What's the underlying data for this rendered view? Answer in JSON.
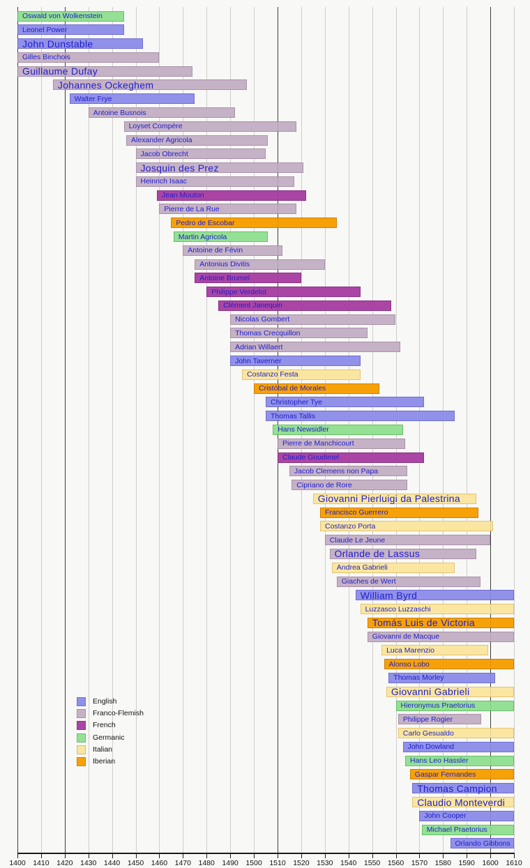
{
  "colors": {
    "background": "#f8f8f6",
    "grid_light": "#cdcdcd",
    "grid_dark": "#3c3c3c",
    "axis": "#1a1a1a",
    "bar_label_text": "#1e1ecc",
    "axis_text": "#111111",
    "legend_text": "#111111"
  },
  "chart_data": {
    "type": "bar",
    "subtype": "timeline-gantt",
    "title": "",
    "xlabel": "",
    "ylabel": "",
    "x_axis": {
      "min": 1400,
      "max": 1610,
      "tick_interval": 10,
      "ticks": [
        1400,
        1410,
        1420,
        1430,
        1440,
        1450,
        1460,
        1470,
        1480,
        1490,
        1500,
        1510,
        1520,
        1530,
        1540,
        1550,
        1560,
        1570,
        1580,
        1590,
        1600,
        1610
      ],
      "dark_gridlines": [
        1400,
        1420,
        1510,
        1600
      ],
      "grid": "on"
    },
    "legend": {
      "position": "bottom-left",
      "entries": [
        "English",
        "Franco-Flemish",
        "French",
        "Germanic",
        "Italian",
        "Iberian"
      ]
    },
    "groups": {
      "English": {
        "fill": "#9191ea",
        "border": "#6f6fd2"
      },
      "Franco-Flemish": {
        "fill": "#c6b2c6",
        "border": "#a892a8"
      },
      "French": {
        "fill": "#aa45a5",
        "border": "#8a2f86"
      },
      "Germanic": {
        "fill": "#94e094",
        "border": "#68c068"
      },
      "Italian": {
        "fill": "#fae6a0",
        "border": "#e2c474"
      },
      "Iberian": {
        "fill": "#f7a109",
        "border": "#ce8000"
      }
    },
    "composers": [
      {
        "name": "Oswald von Wolkenstein",
        "group": "Germanic",
        "start": 1400,
        "end": 1445
      },
      {
        "name": "Leonel Power",
        "group": "English",
        "start": 1400,
        "end": 1445
      },
      {
        "name": "John Dunstable",
        "group": "English",
        "start": 1400,
        "end": 1453,
        "emphasis": true
      },
      {
        "name": "Gilles Binchois",
        "group": "Franco-Flemish",
        "start": 1400,
        "end": 1460
      },
      {
        "name": "Guillaume Dufay",
        "group": "Franco-Flemish",
        "start": 1400,
        "end": 1474,
        "emphasis": true
      },
      {
        "name": "Johannes Ockeghem",
        "group": "Franco-Flemish",
        "start": 1415,
        "end": 1497,
        "emphasis": true
      },
      {
        "name": "Walter Frye",
        "group": "English",
        "start": 1422,
        "end": 1475
      },
      {
        "name": "Antoine Busnois",
        "group": "Franco-Flemish",
        "start": 1430,
        "end": 1492
      },
      {
        "name": "Loyset Compère",
        "group": "Franco-Flemish",
        "start": 1445,
        "end": 1518
      },
      {
        "name": "Alexander Agricola",
        "group": "Franco-Flemish",
        "start": 1446,
        "end": 1506
      },
      {
        "name": "Jacob Obrecht",
        "group": "Franco-Flemish",
        "start": 1450,
        "end": 1505
      },
      {
        "name": "Josquin des Prez",
        "group": "Franco-Flemish",
        "start": 1450,
        "end": 1521,
        "emphasis": true
      },
      {
        "name": "Heinrich Isaac",
        "group": "Franco-Flemish",
        "start": 1450,
        "end": 1517
      },
      {
        "name": "Jean Mouton",
        "group": "French",
        "start": 1459,
        "end": 1522
      },
      {
        "name": "Pierre de La Rue",
        "group": "Franco-Flemish",
        "start": 1460,
        "end": 1518
      },
      {
        "name": "Pedro de Escobar",
        "group": "Iberian",
        "start": 1465,
        "end": 1535
      },
      {
        "name": "Martin Agricola",
        "group": "Germanic",
        "start": 1466,
        "end": 1506
      },
      {
        "name": "Antoine de Févin",
        "group": "Franco-Flemish",
        "start": 1470,
        "end": 1512
      },
      {
        "name": "Antonius Divitis",
        "group": "Franco-Flemish",
        "start": 1475,
        "end": 1530
      },
      {
        "name": "Antoine Brumel",
        "group": "French",
        "start": 1475,
        "end": 1520
      },
      {
        "name": "Philippe Verdelot",
        "group": "French",
        "start": 1480,
        "end": 1545
      },
      {
        "name": "Clément Janequin",
        "group": "French",
        "start": 1485,
        "end": 1558
      },
      {
        "name": "Nicolas Gombert",
        "group": "Franco-Flemish",
        "start": 1490,
        "end": 1560
      },
      {
        "name": "Thomas Crecquillon",
        "group": "Franco-Flemish",
        "start": 1490,
        "end": 1548
      },
      {
        "name": "Adrian Willaert",
        "group": "Franco-Flemish",
        "start": 1490,
        "end": 1562
      },
      {
        "name": "John Taverner",
        "group": "English",
        "start": 1490,
        "end": 1545
      },
      {
        "name": "Costanzo Festa",
        "group": "Italian",
        "start": 1495,
        "end": 1545
      },
      {
        "name": "Cristóbal de Morales",
        "group": "Iberian",
        "start": 1500,
        "end": 1553
      },
      {
        "name": "Christopher Tye",
        "group": "English",
        "start": 1505,
        "end": 1572
      },
      {
        "name": "Thomas Tallis",
        "group": "English",
        "start": 1505,
        "end": 1585
      },
      {
        "name": "Hans Newsidler",
        "group": "Germanic",
        "start": 1508,
        "end": 1563
      },
      {
        "name": "Pierre de Manchicourt",
        "group": "Franco-Flemish",
        "start": 1510,
        "end": 1564
      },
      {
        "name": "Claude Goudimel",
        "group": "French",
        "start": 1510,
        "end": 1572
      },
      {
        "name": "Jacob Clemens non Papa",
        "group": "Franco-Flemish",
        "start": 1515,
        "end": 1565
      },
      {
        "name": "Cipriano de Rore",
        "group": "Franco-Flemish",
        "start": 1516,
        "end": 1565
      },
      {
        "name": "Giovanni Pierluigi da Palestrina",
        "group": "Italian",
        "start": 1525,
        "end": 1594,
        "emphasis": true
      },
      {
        "name": "Francisco Guerrero",
        "group": "Iberian",
        "start": 1528,
        "end": 1595
      },
      {
        "name": "Costanzo Porta",
        "group": "Italian",
        "start": 1528,
        "end": 1601
      },
      {
        "name": "Claude Le Jeune",
        "group": "Franco-Flemish",
        "start": 1530,
        "end": 1600
      },
      {
        "name": "Orlande de Lassus",
        "group": "Franco-Flemish",
        "start": 1532,
        "end": 1594,
        "emphasis": true
      },
      {
        "name": "Andrea Gabrieli",
        "group": "Italian",
        "start": 1533,
        "end": 1585
      },
      {
        "name": "Giaches de Wert",
        "group": "Franco-Flemish",
        "start": 1535,
        "end": 1596
      },
      {
        "name": "William Byrd",
        "group": "English",
        "start": 1543,
        "end": 1610,
        "emphasis": true
      },
      {
        "name": "Luzzasco Luzzaschi",
        "group": "Italian",
        "start": 1545,
        "end": 1610
      },
      {
        "name": "Tomás Luis de Victoria",
        "group": "Iberian",
        "start": 1548,
        "end": 1610,
        "emphasis": true
      },
      {
        "name": "Giovanni de Macque",
        "group": "Franco-Flemish",
        "start": 1548,
        "end": 1610
      },
      {
        "name": "Luca Marenzio",
        "group": "Italian",
        "start": 1554,
        "end": 1599
      },
      {
        "name": "Alonso Lobo",
        "group": "Iberian",
        "start": 1555,
        "end": 1610
      },
      {
        "name": "Thomas Morley",
        "group": "English",
        "start": 1557,
        "end": 1602
      },
      {
        "name": "Giovanni Gabrieli",
        "group": "Italian",
        "start": 1556,
        "end": 1610,
        "emphasis": true
      },
      {
        "name": "Hieronymus Praetorius",
        "group": "Germanic",
        "start": 1560,
        "end": 1610
      },
      {
        "name": "Philippe Rogier",
        "group": "Franco-Flemish",
        "start": 1561,
        "end": 1596
      },
      {
        "name": "Carlo Gesualdo",
        "group": "Italian",
        "start": 1561,
        "end": 1610
      },
      {
        "name": "John Dowland",
        "group": "English",
        "start": 1563,
        "end": 1610
      },
      {
        "name": "Hans Leo Hassler",
        "group": "Germanic",
        "start": 1564,
        "end": 1610
      },
      {
        "name": "Gaspar Fernandes",
        "group": "Iberian",
        "start": 1566,
        "end": 1610
      },
      {
        "name": "Thomas Campion",
        "group": "English",
        "start": 1567,
        "end": 1610,
        "emphasis": true
      },
      {
        "name": "Claudio Monteverdi",
        "group": "Italian",
        "start": 1567,
        "end": 1610,
        "emphasis": true
      },
      {
        "name": "John Cooper",
        "group": "English",
        "start": 1570,
        "end": 1610
      },
      {
        "name": "Michael Praetorius",
        "group": "Germanic",
        "start": 1571,
        "end": 1610
      },
      {
        "name": "Orlando Gibbons",
        "group": "English",
        "start": 1583,
        "end": 1610
      }
    ]
  }
}
